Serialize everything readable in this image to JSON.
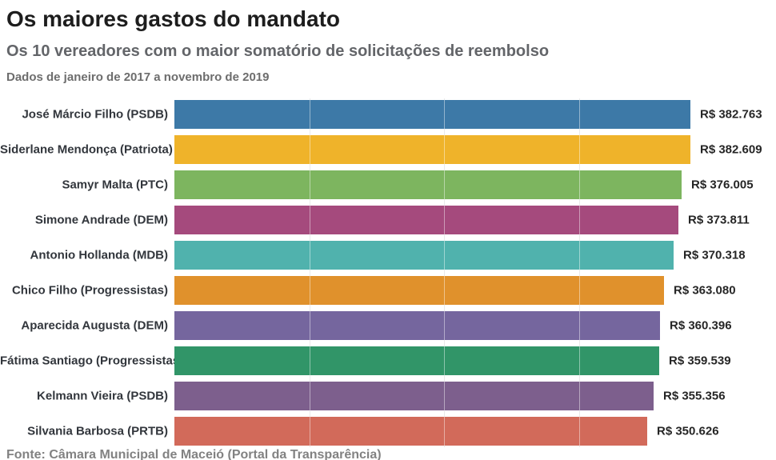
{
  "header": {
    "title": "Os maiores gastos do mandato",
    "subtitle": "Os 10 vereadores com o maior somatório de solicitações de reembolso",
    "dateline": "Dados de janeiro de 2017 a novembro de 2019"
  },
  "chart_data": {
    "type": "bar",
    "orientation": "horizontal",
    "title": "Os maiores gastos do mandato",
    "subtitle": "Os 10 vereadores com o maior somatório de solicitações de reembolso",
    "notes": "Dados de janeiro de 2017 a novembro de 2019",
    "categories": [
      "José Márcio Filho (PSDB)",
      "Siderlane Mendonça (Patriota)",
      "Samyr Malta (PTC)",
      "Simone Andrade (DEM)",
      "Antonio Hollanda (MDB)",
      "Chico Filho (Progressistas)",
      "Aparecida Augusta (DEM)",
      "Fátima Santiago (Progressistas)",
      "Kelmann Vieira (PSDB)",
      "Silvania Barbosa (PRTB)"
    ],
    "values": [
      382763,
      382609,
      376005,
      373811,
      370318,
      363080,
      360396,
      359539,
      355356,
      350626
    ],
    "value_labels": [
      "R$ 382.763",
      "R$ 382.609",
      "R$ 376.005",
      "R$ 373.811",
      "R$ 370.318",
      "R$ 363.080",
      "R$ 360.396",
      "R$ 359.539",
      "R$ 355.356",
      "R$ 350.626"
    ],
    "bar_colors": [
      "#3d79a7",
      "#efb32a",
      "#7db55f",
      "#a54a7d",
      "#50b2ad",
      "#e0912c",
      "#75669e",
      "#319568",
      "#7d5f8d",
      "#d26a5a"
    ],
    "xlim": [
      0,
      382763
    ],
    "gridlines": [
      100000,
      200000,
      300000
    ],
    "grid": true,
    "legend_position": "none",
    "currency": "R$"
  },
  "footer": {
    "source": "Fonte: Câmara Municipal de Maceió (Portal da Transparência)"
  }
}
